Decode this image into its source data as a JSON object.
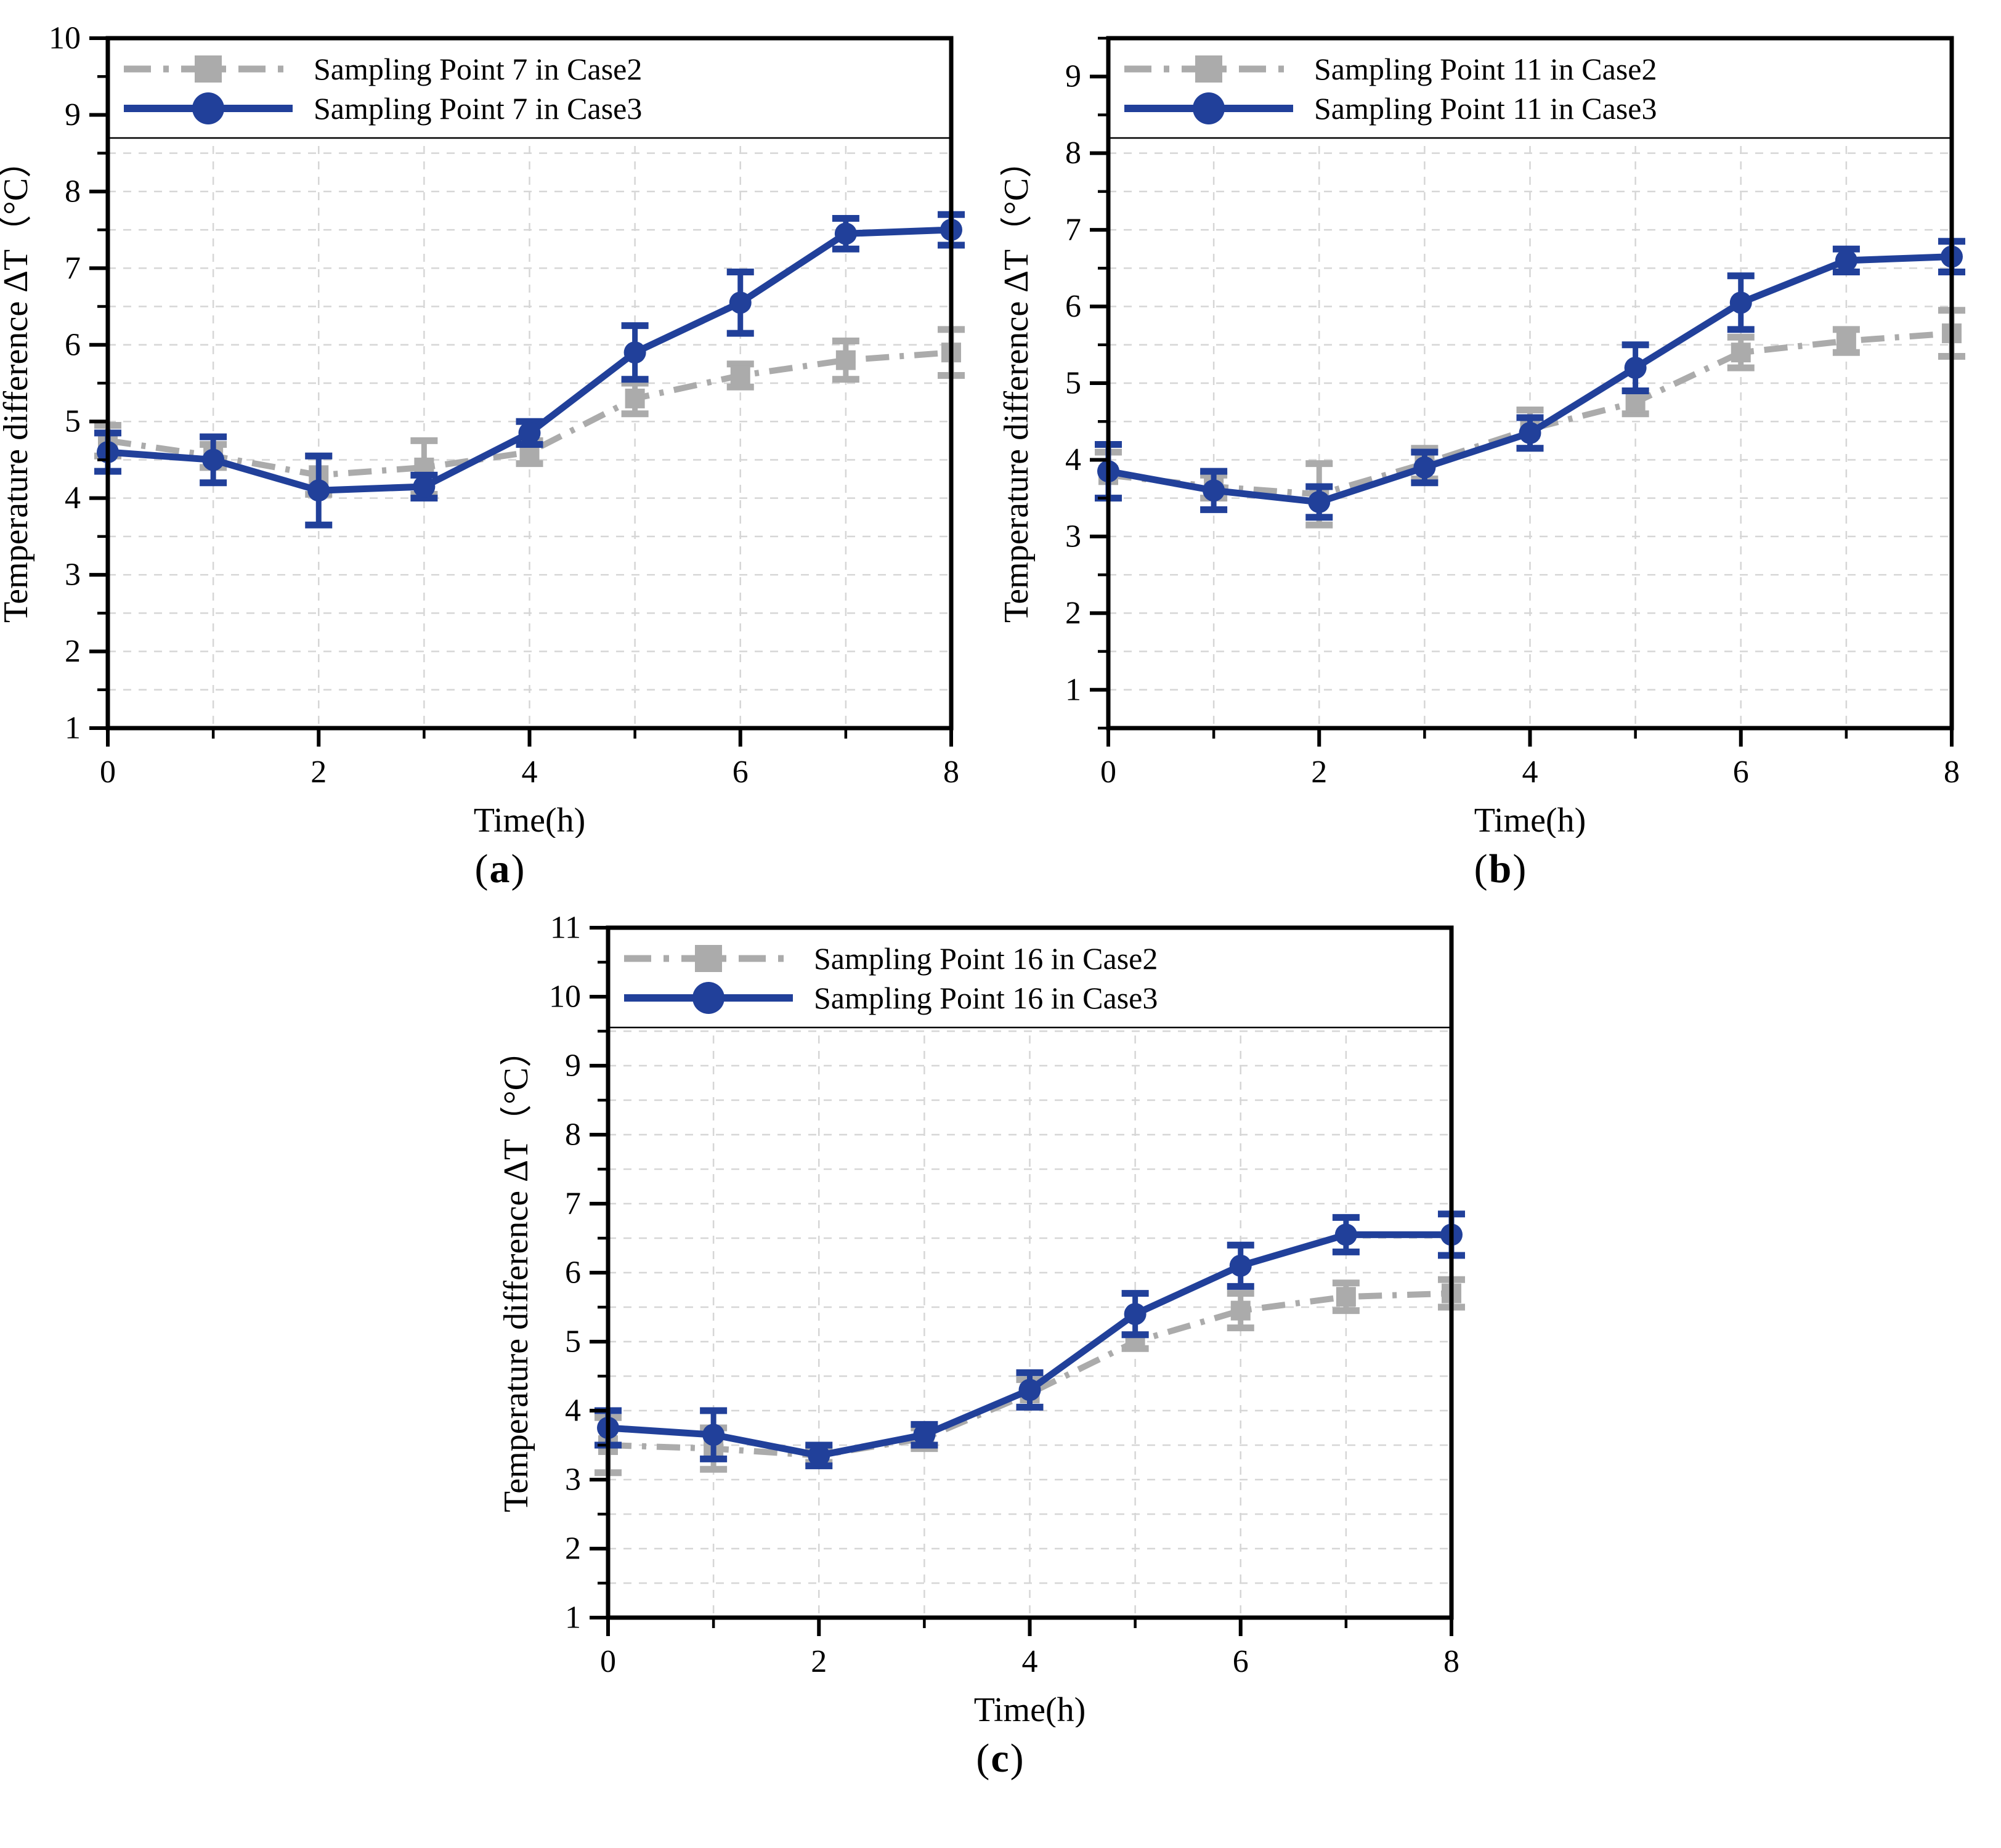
{
  "figure": {
    "background": "#ffffff",
    "colors": {
      "case2_gray": "#ABABAB",
      "case3_blue": "#21409A",
      "grid": "#D6D6D6",
      "axis": "#000000",
      "text": "#000000"
    }
  },
  "chart_data": [
    {
      "type": "line",
      "panel": "a",
      "caption": {
        "open": "(",
        "letter": "a",
        "close": ")"
      },
      "xlabel": "Time(h)",
      "ylabel": "Temperature difference ΔT（°C）",
      "xlim": [
        0,
        8
      ],
      "ylim": [
        1,
        10
      ],
      "xticks_major": [
        0,
        2,
        4,
        6,
        8
      ],
      "xticks_minor": [
        1,
        3,
        5,
        7
      ],
      "ytick_major_step": 1,
      "ytick_minor_step": 0.5,
      "grid": "on",
      "legend_position": "top-inside",
      "x": [
        0,
        1,
        2,
        3,
        4,
        5,
        6,
        7,
        8
      ],
      "series": [
        {
          "name": "Sampling Point 7 in Case2",
          "color": "#ABABAB",
          "marker": "square",
          "line_style": "dash-dot",
          "values": [
            4.75,
            4.55,
            4.3,
            4.4,
            4.6,
            5.3,
            5.6,
            5.8,
            5.9
          ],
          "errors": [
            0.2,
            0.15,
            0.25,
            0.35,
            0.15,
            0.2,
            0.15,
            0.25,
            0.3
          ]
        },
        {
          "name": "Sampling Point 7 in Case3",
          "color": "#21409A",
          "marker": "circle",
          "line_style": "solid",
          "values": [
            4.6,
            4.5,
            4.1,
            4.15,
            4.85,
            5.9,
            6.55,
            7.45,
            7.5
          ],
          "errors": [
            0.25,
            0.3,
            0.45,
            0.15,
            0.15,
            0.35,
            0.4,
            0.2,
            0.2
          ]
        }
      ]
    },
    {
      "type": "line",
      "panel": "b",
      "caption": {
        "open": "(",
        "letter": "b",
        "close": ")"
      },
      "xlabel": "Time(h)",
      "ylabel": "Temperature difference ΔT（°C）",
      "xlim": [
        0,
        8
      ],
      "ylim": [
        0.5,
        9.5
      ],
      "xticks_major": [
        0,
        2,
        4,
        6,
        8
      ],
      "xticks_minor": [
        1,
        3,
        5,
        7
      ],
      "ytick_major_step": 1,
      "ytick_minor_step": 0.5,
      "grid": "on",
      "legend_position": "top-inside",
      "x": [
        0,
        1,
        2,
        3,
        4,
        5,
        6,
        7,
        8
      ],
      "series": [
        {
          "name": "Sampling Point 11 in Case2",
          "color": "#ABABAB",
          "marker": "square",
          "line_style": "dash-dot",
          "values": [
            3.8,
            3.65,
            3.55,
            3.95,
            4.4,
            4.75,
            5.4,
            5.55,
            5.65
          ],
          "errors": [
            0.3,
            0.15,
            0.4,
            0.2,
            0.25,
            0.15,
            0.2,
            0.15,
            0.3
          ]
        },
        {
          "name": "Sampling Point 11 in Case3",
          "color": "#21409A",
          "marker": "circle",
          "line_style": "solid",
          "values": [
            3.85,
            3.6,
            3.45,
            3.9,
            4.35,
            5.2,
            6.05,
            6.6,
            6.65
          ],
          "errors": [
            0.35,
            0.25,
            0.2,
            0.2,
            0.2,
            0.3,
            0.35,
            0.15,
            0.2
          ]
        }
      ]
    },
    {
      "type": "line",
      "panel": "c",
      "caption": {
        "open": "(",
        "letter": "c",
        "close": ")"
      },
      "xlabel": "Time(h)",
      "ylabel": "Temperature difference ΔT（°C）",
      "xlim": [
        0,
        8
      ],
      "ylim": [
        1,
        11
      ],
      "xticks_major": [
        0,
        2,
        4,
        6,
        8
      ],
      "xticks_minor": [
        1,
        3,
        5,
        7
      ],
      "ytick_major_step": 1,
      "ytick_minor_step": 0.5,
      "grid": "on",
      "legend_position": "top-inside",
      "x": [
        0,
        1,
        2,
        3,
        4,
        5,
        6,
        7,
        8
      ],
      "series": [
        {
          "name": "Sampling Point 16 in Case2",
          "color": "#ABABAB",
          "marker": "square",
          "line_style": "dash-dot",
          "values": [
            3.5,
            3.45,
            3.35,
            3.6,
            4.25,
            5.0,
            5.45,
            5.65,
            5.7
          ],
          "errors": [
            0.4,
            0.3,
            0.1,
            0.15,
            0.2,
            0.1,
            0.25,
            0.2,
            0.2
          ]
        },
        {
          "name": "Sampling Point 16 in Case3",
          "color": "#21409A",
          "marker": "circle",
          "line_style": "solid",
          "values": [
            3.75,
            3.65,
            3.35,
            3.65,
            4.3,
            5.4,
            6.1,
            6.55,
            6.55
          ],
          "errors": [
            0.25,
            0.35,
            0.15,
            0.15,
            0.25,
            0.3,
            0.3,
            0.25,
            0.3
          ]
        }
      ]
    }
  ]
}
